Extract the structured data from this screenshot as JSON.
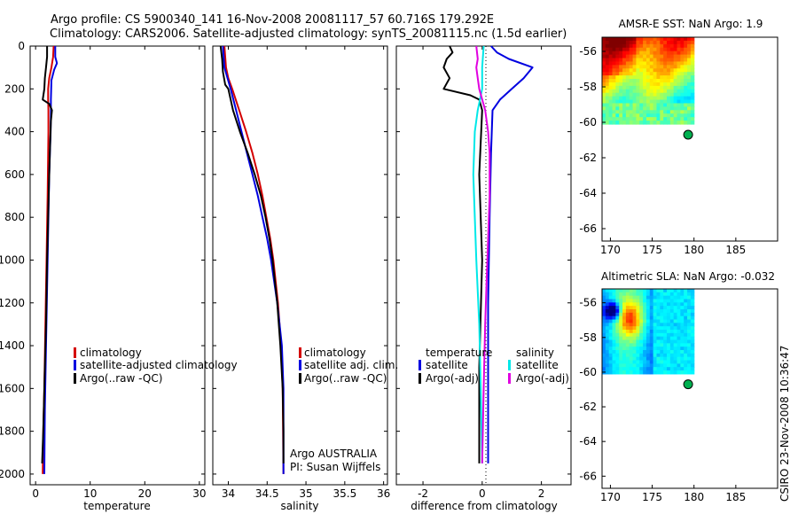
{
  "header": {
    "line1": "Argo profile: CS 5900340_141 16-Nov-2008 20081117_57 60.716S 179.292E",
    "line2": "Climatology: CARS2006. Satellite-adjusted climatology: synTS_20081115.nc (1.5d earlier)"
  },
  "footer": {
    "vertical_stamp": "CSIRO 23-Nov-2008 10:36:47"
  },
  "colors": {
    "climatology": "#d40000",
    "satellite": "#0000e0",
    "argo": "#000000",
    "satellite_diff": "#00e8e8",
    "argo_adj_diff": "#e000e0",
    "sea": "#ffffff"
  },
  "panels": {
    "temperature": {
      "xlabel": "temperature",
      "xticks": [
        "0",
        "10",
        "20",
        "30"
      ],
      "yticks": [
        "0",
        "200",
        "400",
        "600",
        "800",
        "1000",
        "1200",
        "1400",
        "1600",
        "1800",
        "2000"
      ],
      "legend": [
        "climatology",
        "satellite-adjusted climatology",
        "Argo(..raw -QC)"
      ]
    },
    "salinity": {
      "xlabel": "salinity",
      "xticks": [
        "34",
        "34.5",
        "35",
        "35.5",
        "36"
      ],
      "legend": [
        "climatology",
        "satellite adj. clim.",
        "Argo(..raw -QC)"
      ],
      "note_line1": "Argo AUSTRALIA",
      "note_line2": "PI: Susan Wijffels"
    },
    "difference": {
      "xlabel": "difference from climatology",
      "xticks": [
        "-2",
        "0",
        "2"
      ],
      "legend_temp_header": "temperature",
      "legend_temp": [
        "satellite",
        "Argo(-adj)"
      ],
      "legend_sal_header": "salinity",
      "legend_sal": [
        "satellite",
        "Argo(-adj)"
      ]
    },
    "sst_map": {
      "title": "AMSR-E SST: NaN Argo: 1.9",
      "xticks": [
        "170",
        "175",
        "180",
        "185"
      ],
      "yticks": [
        "-56",
        "-58",
        "-60",
        "-62",
        "-64",
        "-66"
      ]
    },
    "sla_map": {
      "title": "Altimetric SLA: NaN Argo: -0.032",
      "xticks": [
        "170",
        "175",
        "180",
        "185"
      ],
      "yticks": [
        "-56",
        "-58",
        "-60",
        "-62",
        "-64",
        "-66"
      ]
    }
  },
  "chart_data": [
    {
      "type": "line",
      "title": "",
      "xlabel": "temperature",
      "ylabel": "",
      "xlim": [
        -1,
        31
      ],
      "ylim": [
        2050,
        0
      ],
      "y_inverted": true,
      "series": [
        {
          "name": "climatology",
          "color": "#d40000",
          "points": [
            [
              3.3,
              0
            ],
            [
              3.2,
              50
            ],
            [
              2.9,
              100
            ],
            [
              2.5,
              150
            ],
            [
              2.3,
              200
            ],
            [
              2.3,
              250
            ],
            [
              2.35,
              300
            ],
            [
              2.35,
              400
            ],
            [
              2.3,
              500
            ],
            [
              2.2,
              700
            ],
            [
              2.0,
              1000
            ],
            [
              1.8,
              1300
            ],
            [
              1.6,
              1600
            ],
            [
              1.4,
              1800
            ],
            [
              1.3,
              2000
            ]
          ]
        },
        {
          "name": "satellite-adjusted climatology",
          "color": "#0000e0",
          "points": [
            [
              3.6,
              0
            ],
            [
              3.6,
              50
            ],
            [
              3.9,
              80
            ],
            [
              3.4,
              110
            ],
            [
              2.9,
              160
            ],
            [
              2.8,
              250
            ],
            [
              2.8,
              300
            ],
            [
              2.75,
              400
            ],
            [
              2.5,
              600
            ],
            [
              2.2,
              1000
            ],
            [
              1.9,
              1400
            ],
            [
              1.7,
              1700
            ],
            [
              1.6,
              2000
            ]
          ]
        },
        {
          "name": "Argo(..raw -QC)",
          "color": "#000000",
          "points": [
            [
              2.1,
              0
            ],
            [
              2.1,
              50
            ],
            [
              1.9,
              100
            ],
            [
              1.7,
              150
            ],
            [
              1.6,
              200
            ],
            [
              1.3,
              250
            ],
            [
              2.5,
              270
            ],
            [
              3.0,
              300
            ],
            [
              2.8,
              350
            ],
            [
              2.6,
              500
            ],
            [
              2.4,
              700
            ],
            [
              2.1,
              1000
            ],
            [
              1.9,
              1300
            ],
            [
              1.7,
              1500
            ],
            [
              1.4,
              1800
            ],
            [
              1.2,
              1950
            ]
          ]
        }
      ]
    },
    {
      "type": "line",
      "title": "",
      "xlabel": "salinity",
      "ylabel": "",
      "xlim": [
        33.8,
        36.05
      ],
      "ylim": [
        2050,
        0
      ],
      "y_inverted": true,
      "series": [
        {
          "name": "climatology",
          "color": "#d40000",
          "points": [
            [
              33.95,
              0
            ],
            [
              33.96,
              50
            ],
            [
              33.97,
              100
            ],
            [
              34.0,
              150
            ],
            [
              34.05,
              200
            ],
            [
              34.14,
              300
            ],
            [
              34.23,
              400
            ],
            [
              34.31,
              500
            ],
            [
              34.38,
              600
            ],
            [
              34.44,
              700
            ],
            [
              34.49,
              800
            ],
            [
              34.54,
              900
            ],
            [
              34.58,
              1000
            ],
            [
              34.64,
              1200
            ],
            [
              34.68,
              1400
            ],
            [
              34.7,
              1600
            ],
            [
              34.71,
              2000
            ]
          ]
        },
        {
          "name": "satellite adj. clim.",
          "color": "#0000e0",
          "points": [
            [
              33.93,
              0
            ],
            [
              33.95,
              100
            ],
            [
              33.99,
              150
            ],
            [
              34.03,
              200
            ],
            [
              34.1,
              300
            ],
            [
              34.17,
              400
            ],
            [
              34.24,
              500
            ],
            [
              34.31,
              600
            ],
            [
              34.38,
              700
            ],
            [
              34.44,
              800
            ],
            [
              34.5,
              900
            ],
            [
              34.55,
              1000
            ],
            [
              34.63,
              1200
            ],
            [
              34.69,
              1400
            ],
            [
              34.71,
              1600
            ],
            [
              34.71,
              2000
            ]
          ]
        },
        {
          "name": "Argo(..raw -QC)",
          "color": "#000000",
          "points": [
            [
              33.9,
              0
            ],
            [
              33.92,
              60
            ],
            [
              33.93,
              120
            ],
            [
              33.96,
              180
            ],
            [
              34.0,
              200
            ],
            [
              34.06,
              300
            ],
            [
              34.15,
              400
            ],
            [
              34.25,
              500
            ],
            [
              34.34,
              600
            ],
            [
              34.42,
              700
            ],
            [
              34.48,
              800
            ],
            [
              34.53,
              900
            ],
            [
              34.57,
              1000
            ],
            [
              34.63,
              1200
            ],
            [
              34.67,
              1400
            ],
            [
              34.7,
              1600
            ],
            [
              34.71,
              1800
            ],
            [
              34.71,
              1950
            ]
          ]
        }
      ]
    },
    {
      "type": "line",
      "title": "",
      "xlabel": "difference from climatology",
      "ylabel": "",
      "xlim": [
        -2.9,
        3.0
      ],
      "ylim": [
        2050,
        0
      ],
      "y_inverted": true,
      "series": [
        {
          "name": "temperature satellite",
          "color": "#0000e0",
          "points": [
            [
              0.3,
              0
            ],
            [
              0.5,
              30
            ],
            [
              0.9,
              60
            ],
            [
              1.7,
              100
            ],
            [
              1.4,
              150
            ],
            [
              1.0,
              200
            ],
            [
              0.6,
              250
            ],
            [
              0.35,
              300
            ],
            [
              0.3,
              500
            ],
            [
              0.25,
              800
            ],
            [
              0.2,
              1200
            ],
            [
              0.2,
              1600
            ],
            [
              0.2,
              1950
            ]
          ]
        },
        {
          "name": "temperature Argo(-adj)",
          "color": "#000000",
          "points": [
            [
              -1.1,
              0
            ],
            [
              -1.0,
              30
            ],
            [
              -1.2,
              60
            ],
            [
              -1.3,
              100
            ],
            [
              -1.1,
              150
            ],
            [
              -1.3,
              200
            ],
            [
              -0.4,
              230
            ],
            [
              -0.1,
              250
            ],
            [
              0.0,
              300
            ],
            [
              -0.1,
              600
            ],
            [
              0.0,
              1000
            ],
            [
              -0.1,
              1500
            ],
            [
              -0.1,
              1950
            ]
          ]
        },
        {
          "name": "salinity satellite",
          "color": "#00e8e8",
          "points": [
            [
              0.05,
              0
            ],
            [
              0.0,
              100
            ],
            [
              0.0,
              200
            ],
            [
              -0.15,
              300
            ],
            [
              -0.25,
              400
            ],
            [
              -0.3,
              600
            ],
            [
              -0.25,
              800
            ],
            [
              -0.2,
              1000
            ],
            [
              -0.1,
              1300
            ],
            [
              -0.05,
              1600
            ],
            [
              0.0,
              1950
            ]
          ]
        },
        {
          "name": "salinity Argo(-adj)",
          "color": "#e000e0",
          "points": [
            [
              -0.2,
              0
            ],
            [
              -0.15,
              60
            ],
            [
              -0.2,
              100
            ],
            [
              -0.15,
              150
            ],
            [
              -0.1,
              200
            ],
            [
              0.1,
              300
            ],
            [
              0.2,
              400
            ],
            [
              0.25,
              500
            ],
            [
              0.25,
              700
            ],
            [
              0.2,
              900
            ],
            [
              0.15,
              1100
            ],
            [
              0.1,
              1300
            ],
            [
              0.05,
              1600
            ],
            [
              0.0,
              1950
            ]
          ]
        }
      ]
    },
    {
      "type": "heatmap",
      "title": "AMSR-E SST: NaN Argo: 1.9",
      "xlim": [
        169,
        190
      ],
      "ylim": [
        -66.7,
        -55.2
      ],
      "data_extent_lon": [
        169,
        180
      ],
      "data_extent_lat": [
        -60.1,
        -55.2
      ],
      "argo_position": [
        179.3,
        -60.7
      ],
      "colormap": "jet"
    },
    {
      "type": "heatmap",
      "title": "Altimetric SLA: NaN Argo: -0.032",
      "xlim": [
        169,
        190
      ],
      "ylim": [
        -66.7,
        -55.2
      ],
      "data_extent_lon": [
        169,
        180
      ],
      "data_extent_lat": [
        -60.1,
        -55.2
      ],
      "argo_position": [
        179.3,
        -60.7
      ],
      "colormap": "jet"
    }
  ]
}
